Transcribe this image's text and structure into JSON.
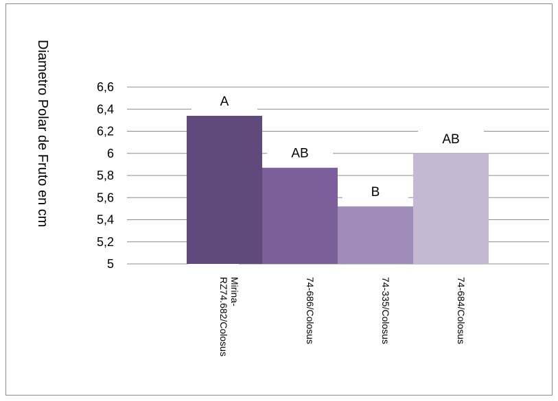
{
  "chart_data": {
    "type": "bar",
    "title": "",
    "xlabel": "",
    "ylabel": "Diametro Polar de Fruto en cm",
    "ylim": [
      5,
      6.6
    ],
    "yticks": [
      "5",
      "5,2",
      "5,4",
      "5,6",
      "5,8",
      "6",
      "6,2",
      "6,4",
      "6,6"
    ],
    "ytick_values": [
      5,
      5.2,
      5.4,
      5.6,
      5.8,
      6,
      6.2,
      6.4,
      6.6
    ],
    "grid": true,
    "categories": [
      [
        "Mirina-",
        "RZ74.682/Colosus"
      ],
      [
        "74-686/Colosus"
      ],
      [
        "74-335/Colosus"
      ],
      [
        "74-684/Colosus"
      ]
    ],
    "values": [
      6.34,
      5.87,
      5.52,
      6.0
    ],
    "labels": [
      "A",
      "AB",
      "B",
      "AB"
    ],
    "colors": [
      "#604a7b",
      "#7a5f9a",
      "#a08cb8",
      "#c4b8d3"
    ]
  }
}
